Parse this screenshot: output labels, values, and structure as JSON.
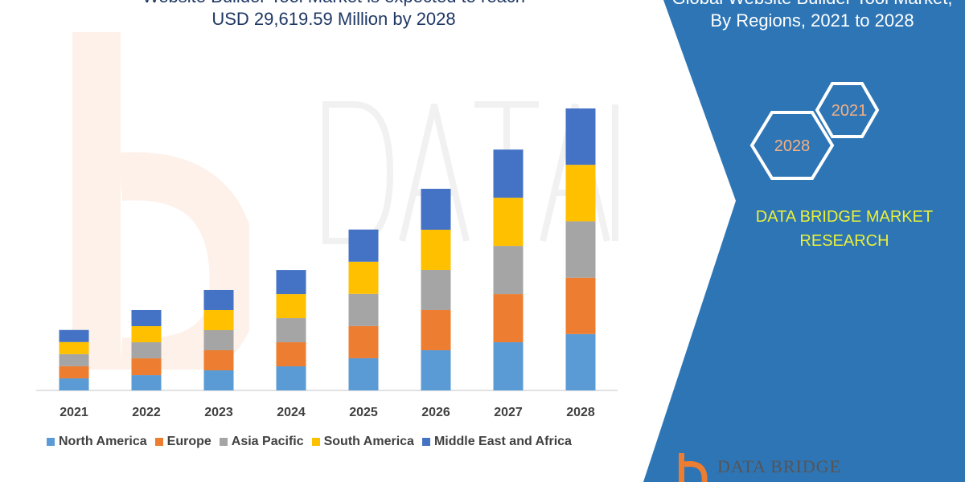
{
  "header": {
    "title_left_line1": "Website Builder Tool Market is expected to reach",
    "title_left_line2": "USD 29,619.59 Million by 2028",
    "title_right_line1": "Global Website Builder Tool Market,",
    "title_right_line2": "By Regions, 2021 to 2028"
  },
  "badges": {
    "hex_2021": "2021",
    "hex_2028": "2028"
  },
  "brand": {
    "line1": "DATA BRIDGE MARKET",
    "line2": "RESEARCH",
    "logo_text": "DATA BRIDGE",
    "watermark": "DATABRIDGE"
  },
  "colors": {
    "panel": "#2e75b6",
    "brand_text": "#e8f03a"
  },
  "chart_data": {
    "type": "bar",
    "stacked": true,
    "title": "USD 29,619.59 Million by 2028",
    "xlabel": "",
    "ylabel": "",
    "categories": [
      "2021",
      "2022",
      "2023",
      "2024",
      "2025",
      "2026",
      "2027",
      "2028"
    ],
    "series": [
      {
        "name": "North America",
        "color": "#5b9bd5",
        "values": [
          1270,
          1600,
          2110,
          2530,
          3380,
          4220,
          5060,
          5920
        ]
      },
      {
        "name": "Europe",
        "color": "#ed7d31",
        "values": [
          1270,
          1770,
          2110,
          2530,
          3380,
          4220,
          5060,
          5920
        ]
      },
      {
        "name": "Asia Pacific",
        "color": "#a5a5a5",
        "values": [
          1270,
          1690,
          2110,
          2530,
          3380,
          4220,
          5060,
          5930
        ]
      },
      {
        "name": "South America",
        "color": "#ffc000",
        "values": [
          1270,
          1690,
          2110,
          2530,
          3380,
          4220,
          5060,
          5930
        ]
      },
      {
        "name": "Middle East and Africa",
        "color": "#4472c4",
        "values": [
          1270,
          1690,
          2110,
          2530,
          3380,
          4300,
          5060,
          5920
        ]
      }
    ],
    "ylim": [
      0,
      29619.59
    ],
    "grid": false,
    "legend": "bottom"
  }
}
